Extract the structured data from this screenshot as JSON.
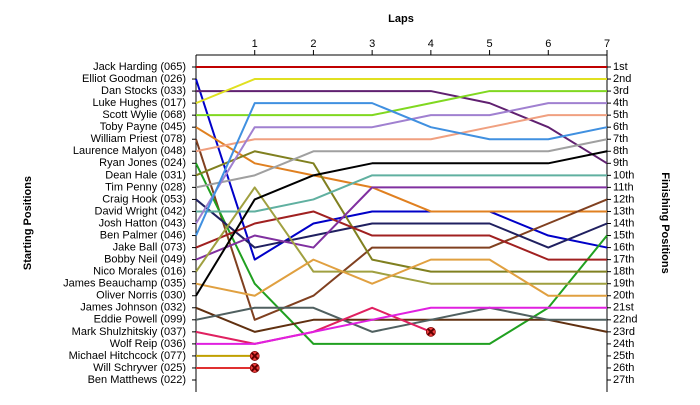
{
  "chart_data": {
    "type": "lap",
    "title": "Laps",
    "ylabel": "Starting Positions",
    "y2label": "Finishing Positions",
    "x": [
      0,
      1,
      2,
      3,
      4,
      5,
      6,
      7
    ],
    "xlim": [
      0,
      7
    ],
    "xticks": [
      1,
      2,
      3,
      4,
      5,
      6,
      7
    ],
    "ylim": [
      1,
      27
    ],
    "y_inverted": true,
    "finish_labels": [
      "1st",
      "2nd",
      "3rd",
      "4th",
      "5th",
      "6th",
      "7th",
      "8th",
      "9th",
      "10th",
      "11th",
      "12th",
      "13th",
      "14th",
      "15th",
      "16th",
      "17th",
      "18th",
      "19th",
      "20th",
      "21st",
      "22nd",
      "23rd",
      "24th",
      "25th",
      "26th",
      "27th"
    ],
    "series": [
      {
        "name": "Jack Harding (065)",
        "color": "#c00000",
        "values": [
          1,
          1,
          1,
          1,
          1,
          1,
          1,
          1
        ]
      },
      {
        "name": "Elliot Goodman (026)",
        "color": "#0000c8",
        "values": [
          2,
          17,
          14,
          13,
          13,
          13,
          15,
          16
        ]
      },
      {
        "name": "Dan Stocks (033)",
        "color": "#602070",
        "values": [
          3,
          3,
          3,
          3,
          3,
          4,
          6,
          9
        ]
      },
      {
        "name": "Luke Hughes (017)",
        "color": "#e0e020",
        "values": [
          4,
          2,
          2,
          2,
          2,
          2,
          2,
          2
        ]
      },
      {
        "name": "Scott Wylie (068)",
        "color": "#80d820",
        "values": [
          5,
          5,
          5,
          5,
          4,
          3,
          3,
          3
        ]
      },
      {
        "name": "Toby Payne (045)",
        "color": "#e08020",
        "values": [
          6,
          9,
          10,
          11,
          13,
          13,
          13,
          13
        ]
      },
      {
        "name": "William Priest (078)",
        "color": "#804020",
        "values": [
          7,
          22,
          20,
          16,
          16,
          16,
          14,
          12
        ]
      },
      {
        "name": "Laurence Malyon (048)",
        "color": "#f0a080",
        "values": [
          8,
          7,
          7,
          7,
          7,
          6,
          5,
          5
        ]
      },
      {
        "name": "Ryan Jones (024)",
        "color": "#20a020",
        "values": [
          9,
          19,
          24,
          24,
          24,
          24,
          21,
          15
        ]
      },
      {
        "name": "Dean Hale (031)",
        "color": "#808020",
        "values": [
          10,
          8,
          9,
          17,
          18,
          18,
          18,
          18
        ]
      },
      {
        "name": "Tim Penny (028)",
        "color": "#a0a0a0",
        "values": [
          11,
          10,
          8,
          8,
          8,
          8,
          8,
          7
        ]
      },
      {
        "name": "Craig Hook (053)",
        "color": "#202060",
        "values": [
          12,
          16,
          15,
          14,
          14,
          14,
          16,
          14
        ]
      },
      {
        "name": "David Wright (042)",
        "color": "#60b0a0",
        "values": [
          13,
          13,
          12,
          10,
          10,
          10,
          10,
          10
        ]
      },
      {
        "name": "Josh Hatton (043)",
        "color": "#a080d0",
        "values": [
          14,
          6,
          6,
          6,
          5,
          5,
          4,
          4
        ]
      },
      {
        "name": "Ben Palmer (046)",
        "color": "#4090e0",
        "values": [
          15,
          4,
          4,
          4,
          6,
          7,
          7,
          6
        ]
      },
      {
        "name": "Jake Ball (073)",
        "color": "#a02020",
        "values": [
          16,
          14,
          13,
          15,
          15,
          15,
          17,
          17
        ]
      },
      {
        "name": "Bobby Neil (049)",
        "color": "#8030a0",
        "values": [
          17,
          15,
          16,
          11,
          11,
          11,
          11,
          11
        ]
      },
      {
        "name": "Nico Morales (016)",
        "color": "#a0a040",
        "values": [
          18,
          11,
          18,
          18,
          19,
          19,
          19,
          19
        ]
      },
      {
        "name": "James Beauchamp (035)",
        "color": "#e0a040",
        "values": [
          19,
          20,
          17,
          19,
          17,
          17,
          20,
          20
        ]
      },
      {
        "name": "Oliver Norris (030)",
        "color": "#000000",
        "values": [
          20,
          12,
          10,
          9,
          9,
          9,
          9,
          8
        ]
      },
      {
        "name": "James Johnson (032)",
        "color": "#603010",
        "values": [
          21,
          23,
          22,
          22,
          22,
          22,
          22,
          23
        ]
      },
      {
        "name": "Eddie Powell (099)",
        "color": "#506060",
        "values": [
          22,
          21,
          21,
          23,
          22,
          21,
          22,
          22
        ]
      },
      {
        "name": "Mark Shulzhitskiy (037)",
        "color": "#e02060",
        "values": [
          23,
          24,
          23,
          21,
          23,
          null,
          null,
          null
        ]
      },
      {
        "name": "Wolf Reip (036)",
        "color": "#e020e0",
        "values": [
          24,
          24,
          23,
          22,
          21,
          21,
          21,
          21
        ]
      },
      {
        "name": "Michael Hitchcock (077)",
        "color": "#c0a000",
        "values": [
          25,
          25,
          null,
          null,
          null,
          null,
          null,
          null
        ]
      },
      {
        "name": "Will Schryver (025)",
        "color": "#e03030",
        "values": [
          26,
          26,
          null,
          null,
          null,
          null,
          null,
          null
        ]
      },
      {
        "name": "Ben Matthews (022)",
        "color": "#4040a0",
        "values": [
          27,
          null,
          null,
          null,
          null,
          null,
          null,
          null
        ]
      }
    ]
  }
}
